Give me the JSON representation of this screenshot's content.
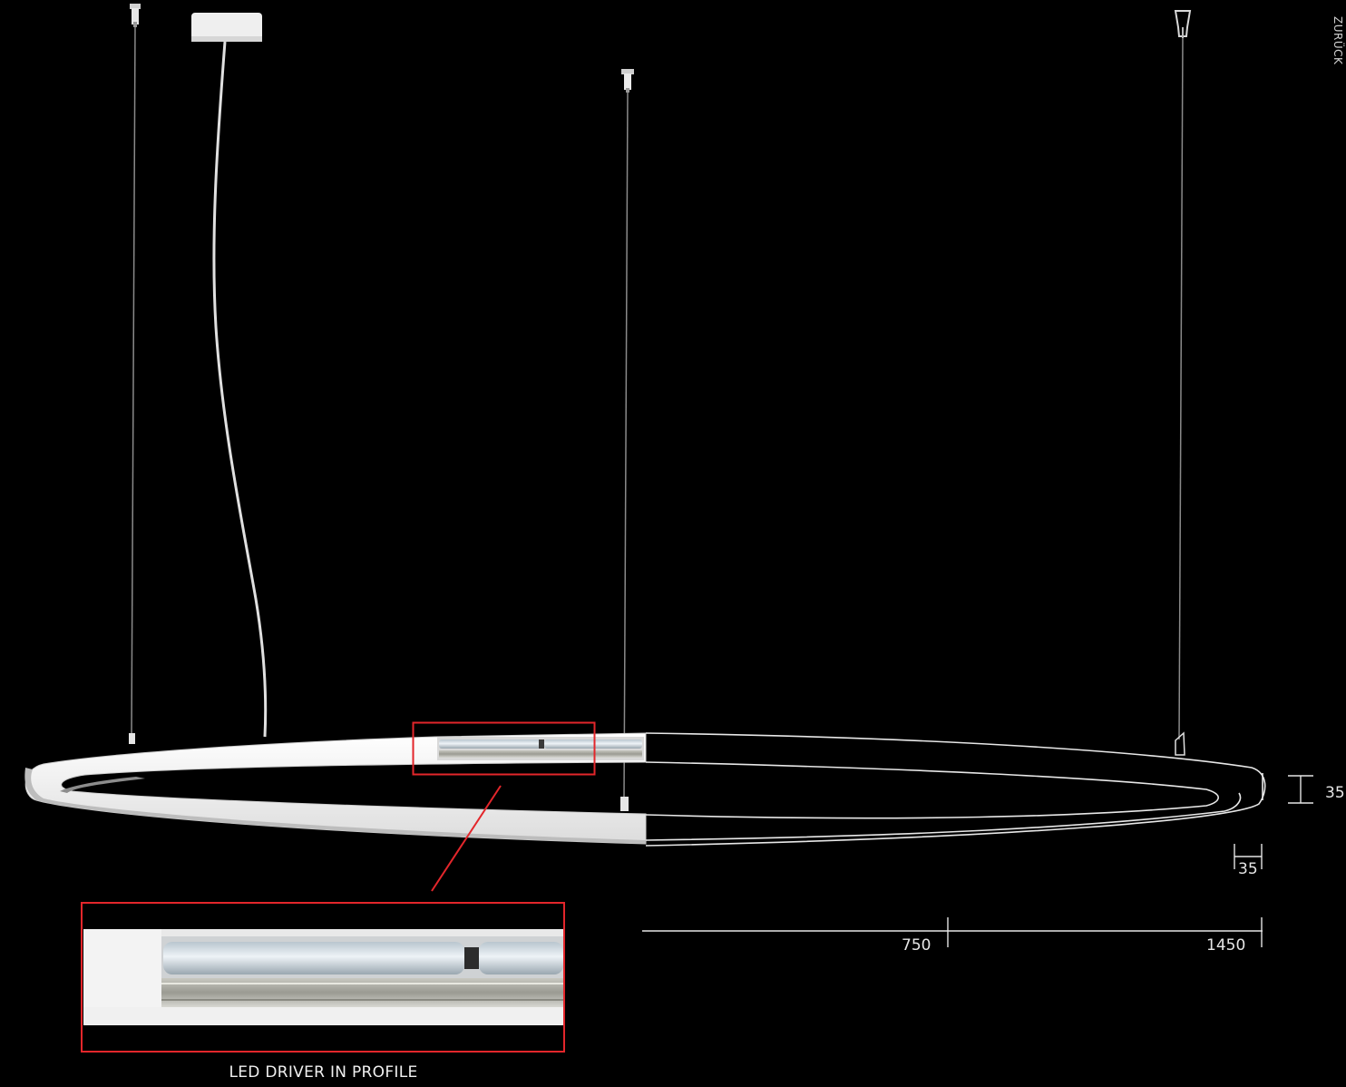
{
  "nav": {
    "back_label": "ZURÜCK"
  },
  "dimensions": {
    "height_label": "35",
    "profile_width_label": "35",
    "radius_label": "750",
    "diameter_label": "1450"
  },
  "detail": {
    "caption": "LED DRIVER IN PROFILE"
  },
  "colors": {
    "background": "#000000",
    "fixture": "#f2f2f2",
    "highlight_frame": "#e3262b",
    "dimension_lines": "#e6e6e6"
  }
}
